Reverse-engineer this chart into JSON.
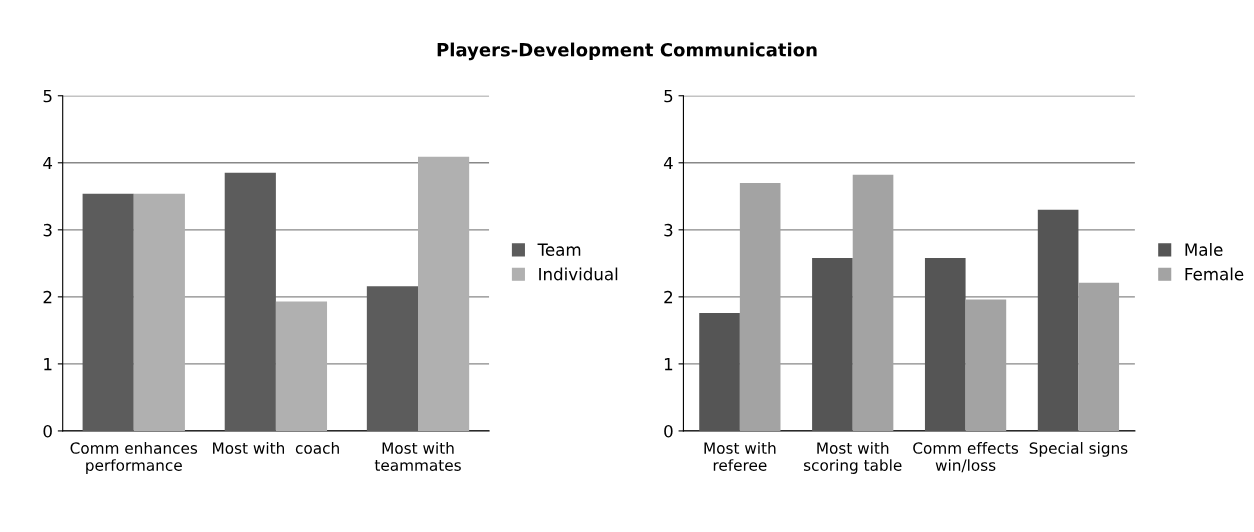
{
  "chart_data": [
    {
      "type": "bar",
      "title": "Players-Development Communication",
      "categories": [
        "Comm enhances\nperformance",
        "Most with  coach",
        "Most with\nteammates"
      ],
      "series": [
        {
          "name": "Team",
          "color": "#5c5c5c",
          "values": [
            3.54,
            3.85,
            2.16
          ]
        },
        {
          "name": "Individual",
          "color": "#b0b0b0",
          "values": [
            3.54,
            1.93,
            4.09
          ]
        }
      ],
      "ylim": [
        0,
        5
      ],
      "yticks": [
        0,
        1,
        2,
        3,
        4,
        5
      ],
      "grid": "y",
      "legend": "right"
    },
    {
      "type": "bar",
      "categories": [
        "Most with\nreferee",
        "Most with\nscoring table",
        "Comm effects\nwin/loss",
        "Special signs"
      ],
      "series": [
        {
          "name": "Male",
          "color": "#555555",
          "values": [
            1.76,
            2.58,
            2.58,
            3.3
          ]
        },
        {
          "name": "Female",
          "color": "#a3a3a3",
          "values": [
            3.7,
            3.82,
            1.96,
            2.21
          ]
        }
      ],
      "ylim": [
        0,
        5
      ],
      "yticks": [
        0,
        1,
        2,
        3,
        4,
        5
      ],
      "grid": "y",
      "legend": "right"
    }
  ]
}
